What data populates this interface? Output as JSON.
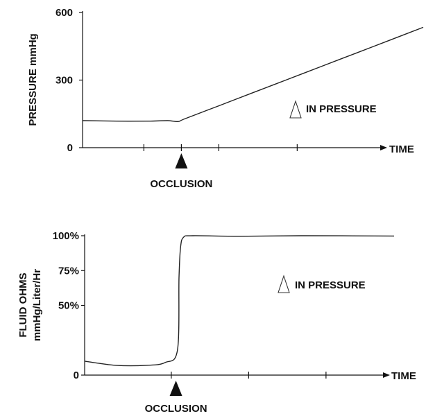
{
  "chart_data": [
    {
      "type": "line",
      "title": "",
      "ylabel": "PRESSURE  mmHg",
      "xlabel": "TIME",
      "ylim": [
        0,
        600
      ],
      "yticks": [
        {
          "value": 0,
          "label": "0"
        },
        {
          "value": 300,
          "label": "300"
        },
        {
          "value": 600,
          "label": "600"
        }
      ],
      "xlim": [
        0,
        1
      ],
      "xticks": [
        0.18,
        0.29,
        0.4,
        0.63
      ],
      "series": [
        {
          "x": [
            0,
            0.1,
            0.2,
            0.25,
            0.28,
            0.3,
            0.4,
            0.5,
            0.6,
            0.7,
            0.8,
            0.9,
            1.0
          ],
          "y": [
            120,
            118,
            118,
            120,
            116,
            128,
            186,
            244,
            302,
            360,
            418,
            476,
            534
          ]
        }
      ],
      "marker": {
        "x": 0.29,
        "label": "OCCLUSION"
      },
      "annotation": {
        "text": "IN PRESSURE",
        "symbol": "triangle-outline"
      }
    },
    {
      "type": "line",
      "title": "",
      "ylabel_lines": [
        "FLUID OHMS",
        "mmHg/Liter/Hr"
      ],
      "xlabel": "TIME",
      "ylim": [
        0,
        100
      ],
      "yticks": [
        {
          "value": 0,
          "label": "0"
        },
        {
          "value": 50,
          "label": "50%"
        },
        {
          "value": 75,
          "label": "75%"
        },
        {
          "value": 100,
          "label": "100%"
        }
      ],
      "xlim": [
        0,
        1
      ],
      "xticks": [
        0.28,
        0.53,
        0.78
      ],
      "series": [
        {
          "x": [
            0,
            0.1,
            0.2,
            0.26,
            0.3,
            0.305,
            0.31,
            0.32,
            0.35,
            0.5,
            0.7,
            1.0
          ],
          "y": [
            10,
            7,
            7,
            9,
            18,
            70,
            92,
            99,
            100,
            99.6,
            100,
            99.8
          ]
        }
      ],
      "marker": {
        "x": 0.295,
        "label": "OCCLUSION"
      },
      "annotation": {
        "text": "IN PRESSURE",
        "symbol": "triangle-outline"
      }
    }
  ],
  "icons": {
    "occlusion_marker": "filled-triangle-icon",
    "delta": "delta-triangle-icon"
  }
}
